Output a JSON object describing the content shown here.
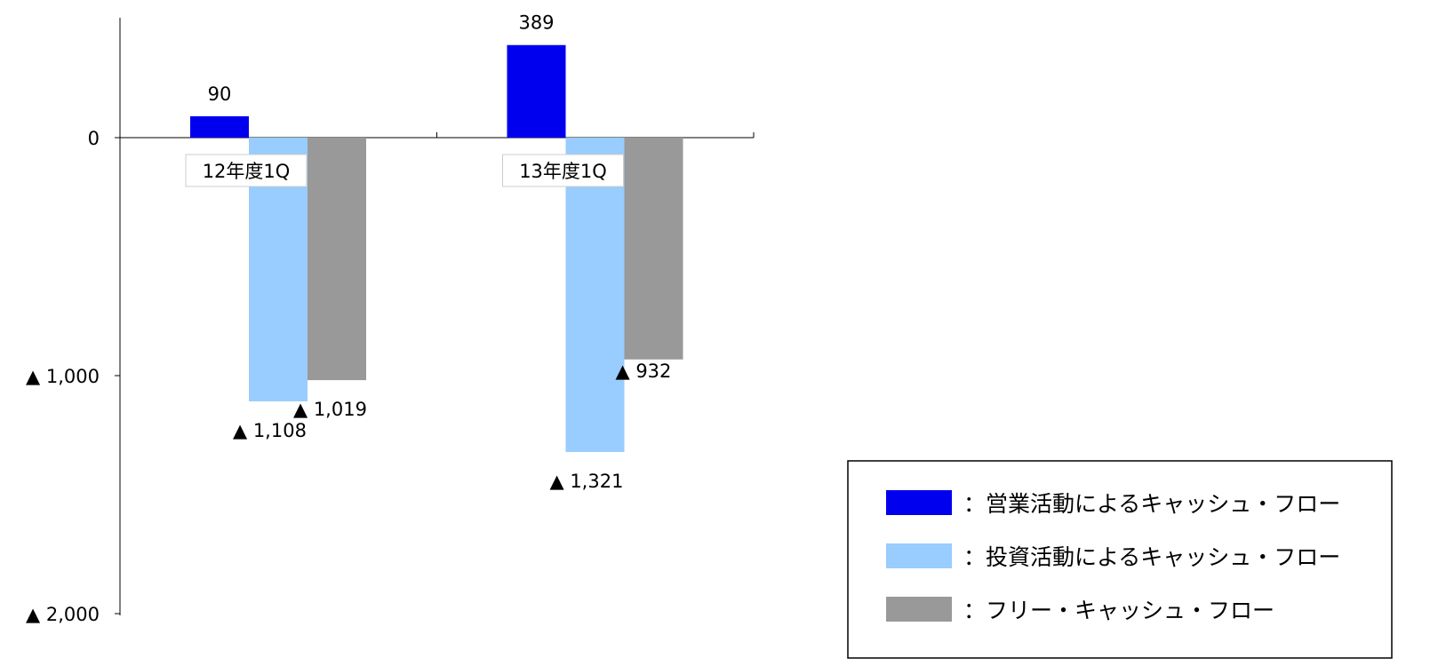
{
  "chart_data": {
    "type": "bar",
    "categories": [
      "12年度1Q",
      "13年度1Q"
    ],
    "series": [
      {
        "name": "営業活動によるキャッシュ・フロー",
        "legend_text": "：営業活動によるキャッシュ・フロー",
        "color": "#0000ee",
        "values": [
          90,
          389
        ],
        "value_labels": [
          "90",
          "389"
        ]
      },
      {
        "name": "投資活動によるキャッシュ・フロー",
        "legend_text": "：投資活動によるキャッシュ・フロー",
        "color": "#99ccff",
        "values": [
          -1108,
          -1321
        ],
        "value_labels": [
          "▲ 1,108",
          "▲ 1,321"
        ]
      },
      {
        "name": "フリー・キャッシュ・フロー",
        "legend_text": "：フリー・キャッシュ・フロー",
        "color": "#999999",
        "values": [
          -1019,
          -932
        ],
        "value_labels": [
          "▲ 1,019",
          "▲ 932"
        ]
      }
    ],
    "ylim": [
      -2000,
      500
    ],
    "yticks": [
      {
        "value": 0,
        "label": "0"
      },
      {
        "value": -1000,
        "label": "▲ 1,000"
      },
      {
        "value": -2000,
        "label": "▲ 2,000"
      }
    ],
    "grid": false,
    "legend_position": "bottom-right",
    "title": "",
    "xlabel": "",
    "ylabel": ""
  }
}
